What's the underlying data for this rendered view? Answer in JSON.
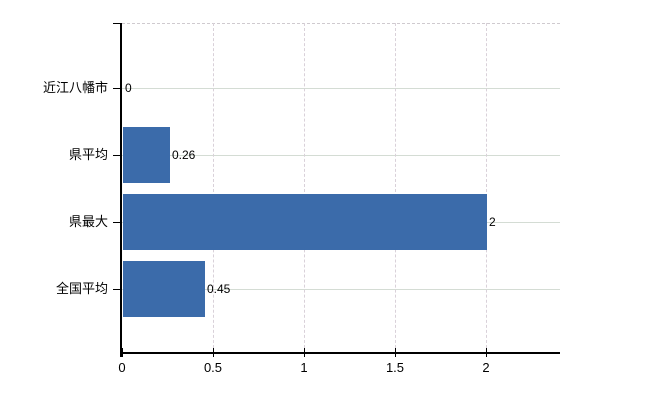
{
  "chart_data": {
    "type": "bar",
    "orientation": "horizontal",
    "title": "",
    "xlabel": "",
    "ylabel": "",
    "categories": [
      "近江八幡市",
      "県平均",
      "県最大",
      "全国平均"
    ],
    "values": [
      0,
      0.26,
      2,
      0.45
    ],
    "value_labels": [
      "0",
      "0.26",
      "2",
      "0.45"
    ],
    "x_ticks": [
      0,
      0.5,
      1,
      1.5,
      2
    ],
    "x_tick_labels": [
      "0",
      "0.5",
      "1",
      "1.5",
      "2"
    ],
    "xlim": [
      0,
      2.4
    ],
    "grid": true,
    "legend": "none",
    "colors": {
      "bar": "#3b6baa",
      "horizontal_grid": "#d4dcd4",
      "vertical_grid": "#d9d1d9",
      "plot_top_border": "#cfcacf",
      "axis": "#000000",
      "text": "#000000",
      "background": "#ffffff"
    }
  }
}
